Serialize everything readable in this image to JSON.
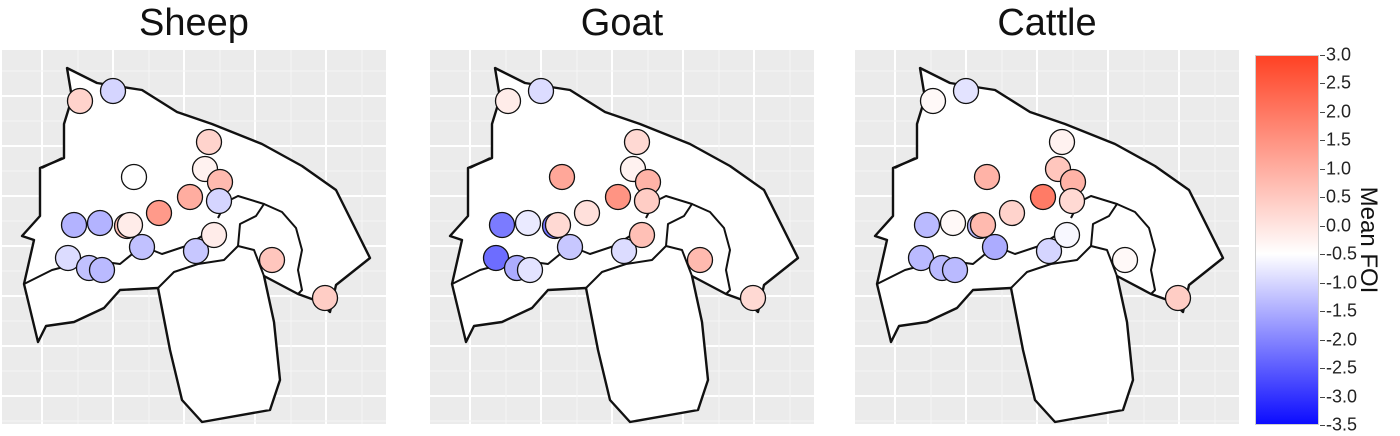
{
  "panels": [
    {
      "title": "Sheep",
      "values": [
        0.7,
        -0.6,
        0.7,
        0.2,
        0.0,
        1.1,
        1.3,
        1.6,
        -0.6,
        1.0,
        -1.1,
        -1.1,
        0.3,
        -0.9,
        -0.5,
        -0.9,
        -1.0,
        -0.8,
        0.3,
        0.9,
        0.8
      ]
    },
    {
      "title": "Goat",
      "values": [
        0.3,
        -0.5,
        0.6,
        0.2,
        1.4,
        1.2,
        1.7,
        0.5,
        0.8,
        -2.0,
        -1.9,
        -0.3,
        0.6,
        -0.8,
        -2.1,
        -1.2,
        -0.4,
        -0.5,
        1.0,
        1.1,
        0.6
      ]
    },
    {
      "title": "Cattle",
      "values": [
        0.1,
        -0.4,
        0.2,
        0.9,
        1.2,
        1.2,
        2.1,
        0.7,
        0.6,
        -1.0,
        -1.0,
        0.1,
        1.1,
        -1.2,
        -1.0,
        -1.0,
        -1.0,
        -0.6,
        -0.1,
        0.1,
        0.8
      ]
    }
  ],
  "legend": {
    "title": "Mean FOI",
    "min": -3.5,
    "max": 3.0,
    "ticks": [
      "3.0",
      "2.5",
      "2.0",
      "1.5",
      "1.0",
      "0.5",
      "0.0",
      "-0.5",
      "-1.0",
      "-1.5",
      "-2.0",
      "-2.5",
      "-3.0",
      "-3.5"
    ],
    "colors": {
      "high": "#ff4224",
      "mid": "#ffffff",
      "low": "#0c0cff"
    }
  }
}
